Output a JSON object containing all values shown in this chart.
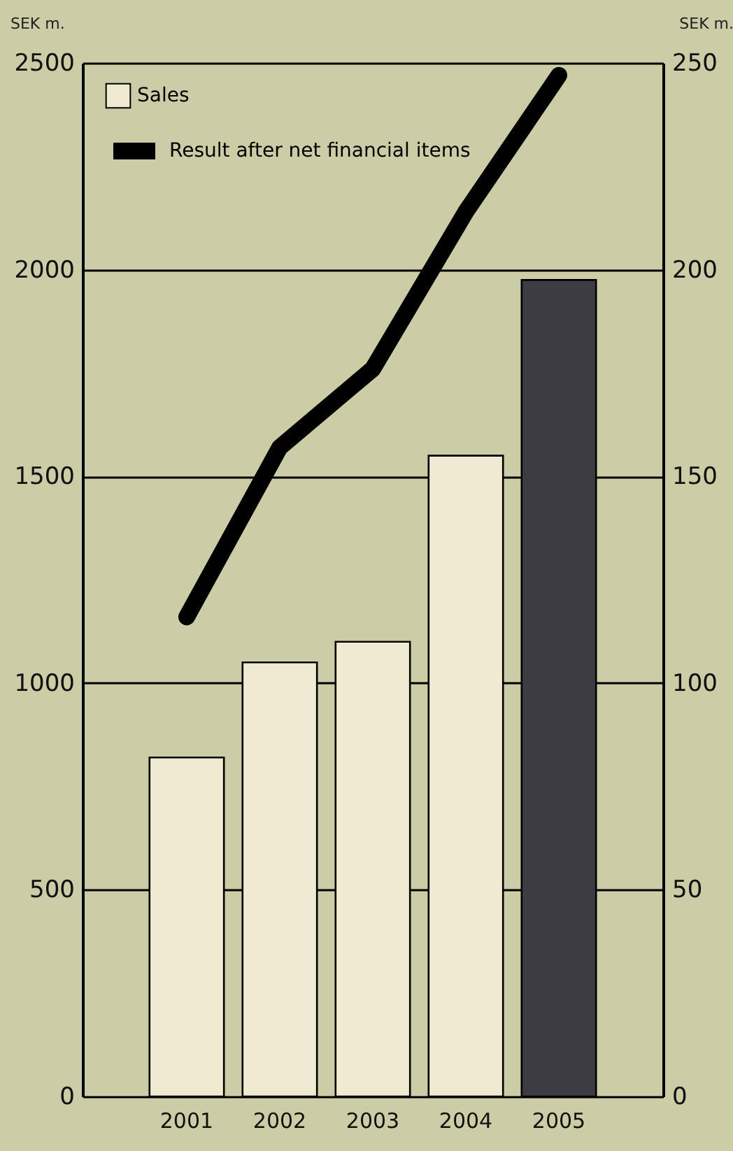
{
  "chart_data": {
    "type": "bar",
    "categories": [
      "2001",
      "2002",
      "2003",
      "2004",
      "2005"
    ],
    "ylabel": "SEK m.",
    "y2label": "SEK m.",
    "ylim": [
      0,
      2500
    ],
    "yticks": [
      0,
      500,
      1000,
      1500,
      2000,
      2500
    ],
    "y2lim": [
      0,
      250
    ],
    "y2ticks": [
      0,
      50,
      100,
      150,
      200,
      250
    ],
    "grid": "y",
    "legend": "top left",
    "series": [
      {
        "name": "Sales",
        "color": "#f0ead2",
        "colors": [
          "#f0ead2",
          "#f0ead2",
          "#f0ead2",
          "#f0ead2",
          "#3d3c43"
        ],
        "values": [
          820,
          1050,
          1100,
          1550,
          1975
        ]
      },
      {
        "name": "Result after net financial items",
        "type": "line",
        "axis": "y2",
        "color": "#000000",
        "values": [
          116,
          157,
          176,
          214,
          247
        ]
      }
    ]
  }
}
